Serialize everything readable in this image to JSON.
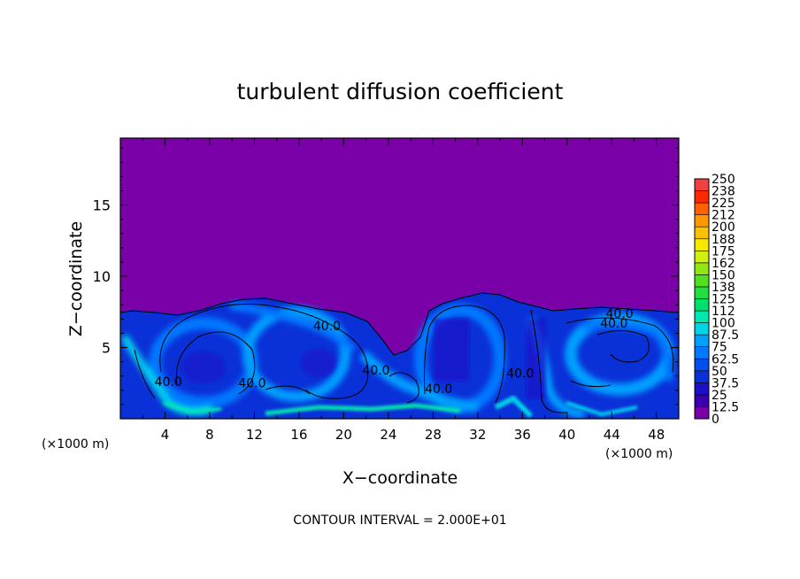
{
  "chart_data": {
    "type": "heatmap",
    "title": "turbulent diffusion coefficient",
    "xlabel": "X−coordinate",
    "ylabel": "Z−coordinate",
    "x_unit_left": "(×1000 m)",
    "x_unit_right": "(×1000 m)",
    "footer": "CONTOUR INTERVAL = 2.000E+01",
    "xlim": [
      0,
      50
    ],
    "ylim": [
      0,
      19.7
    ],
    "x_ticks": [
      4,
      8,
      12,
      16,
      20,
      24,
      28,
      32,
      36,
      40,
      44,
      48
    ],
    "x_tick_labels": [
      "4",
      "8",
      "12",
      "16",
      "20",
      "24",
      "28",
      "32",
      "36",
      "40",
      "44",
      "48"
    ],
    "y_ticks": [
      5,
      10,
      15
    ],
    "y_tick_labels": [
      "5",
      "10",
      "15"
    ],
    "contour_labels": [
      {
        "text": "40.0",
        "x": 18.5,
        "y": 6.2
      },
      {
        "text": "40.0",
        "x": 4.3,
        "y": 2.3
      },
      {
        "text": "40.0",
        "x": 11.8,
        "y": 2.2
      },
      {
        "text": "40.0",
        "x": 22.9,
        "y": 3.1
      },
      {
        "text": "40.0",
        "x": 28.5,
        "y": 1.8
      },
      {
        "text": "40.0",
        "x": 35.8,
        "y": 2.9
      },
      {
        "text": "40.0",
        "x": 44.7,
        "y": 7.1
      },
      {
        "text": "40.0",
        "x": 44.2,
        "y": 6.4
      }
    ],
    "field": {
      "description_values": "turbulent region below ~7–9 (x1000 m) with values ~0–80, zero above",
      "background_value": 0
    },
    "colorbar": {
      "levels": [
        "0",
        "12.5",
        "25",
        "37.5",
        "50",
        "62.5",
        "75",
        "87.5",
        "100",
        "112",
        "125",
        "138",
        "150",
        "162",
        "175",
        "188",
        "200",
        "212",
        "225",
        "238",
        "250"
      ],
      "colors": [
        "#7a00a8",
        "#3a00b0",
        "#1a10c8",
        "#0a30d8",
        "#0050f0",
        "#0078ff",
        "#00a0ff",
        "#00d4e8",
        "#00e8b0",
        "#00e070",
        "#20e040",
        "#50e020",
        "#90e810",
        "#d0f010",
        "#f8e800",
        "#ffc000",
        "#ff9800",
        "#ff6000",
        "#ff2800",
        "#f04040",
        "#f08080"
      ]
    }
  }
}
